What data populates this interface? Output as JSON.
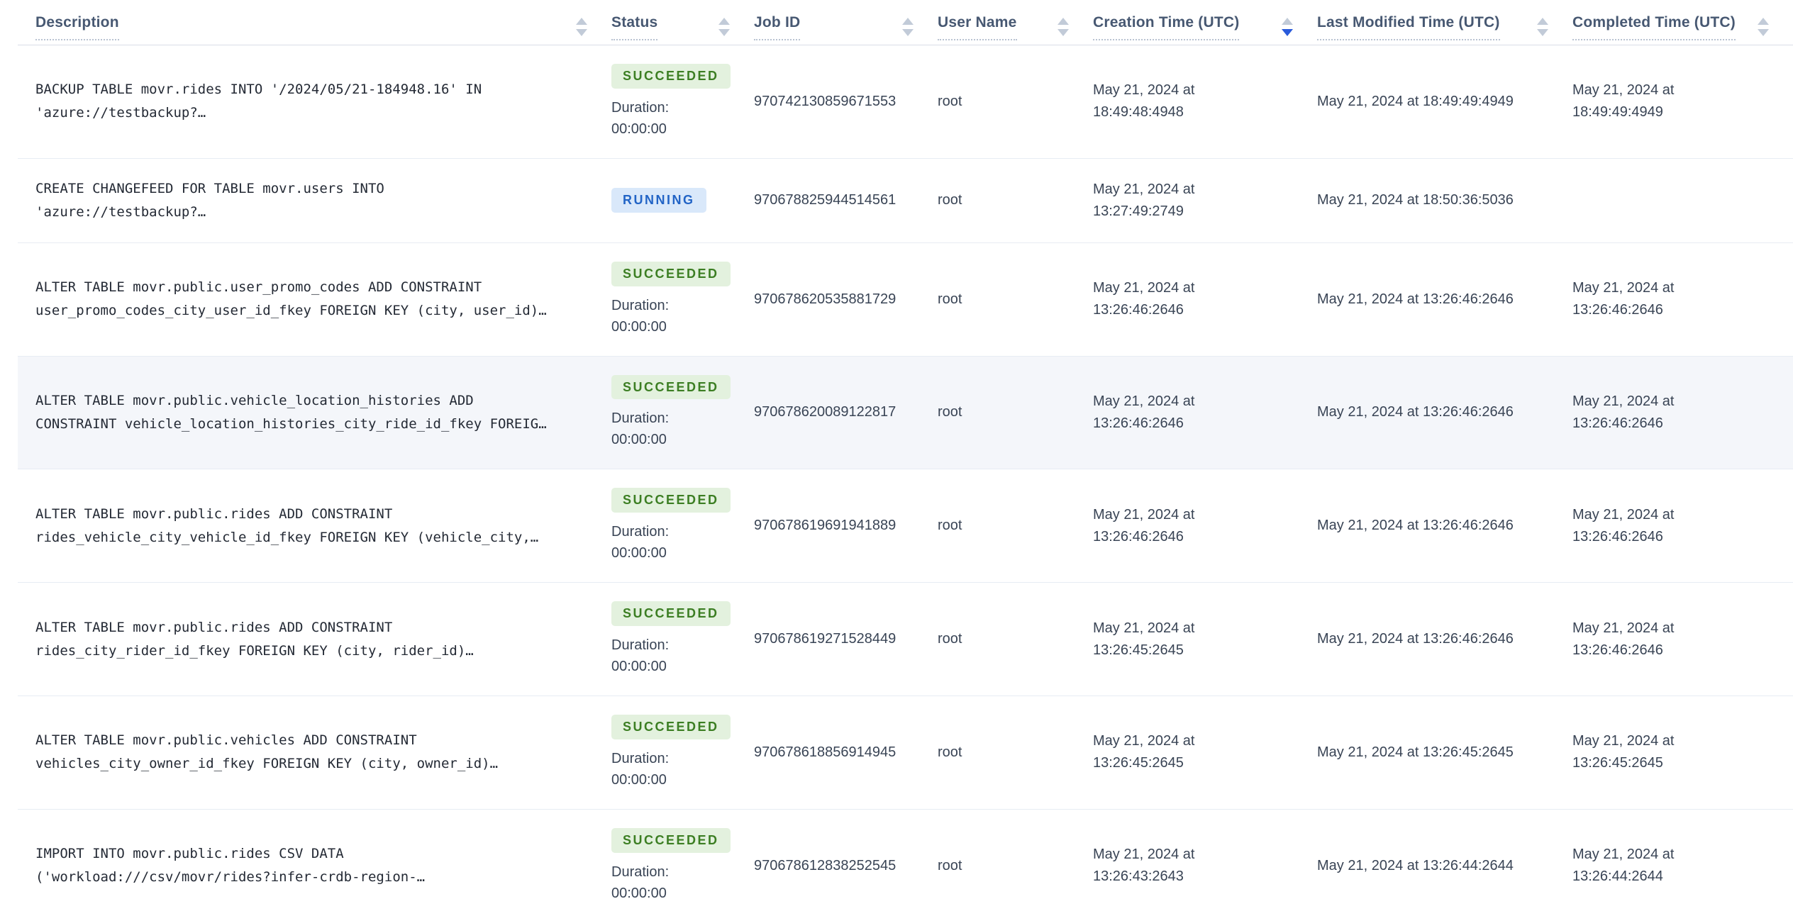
{
  "jobs_table": {
    "columns": [
      {
        "label": "Description",
        "sorted": ""
      },
      {
        "label": "Status",
        "sorted": ""
      },
      {
        "label": "Job ID",
        "sorted": ""
      },
      {
        "label": "User Name",
        "sorted": ""
      },
      {
        "label": "Creation Time (UTC)",
        "sorted": "desc"
      },
      {
        "label": "Last Modified Time (UTC)",
        "sorted": ""
      },
      {
        "label": "Completed Time (UTC)",
        "sorted": ""
      }
    ],
    "colors": {
      "succeeded_badge_bg": "#e3f1de",
      "succeeded_badge_text": "#3c7e23",
      "running_badge_bg": "#d9e8fa",
      "running_badge_text": "#2264c6",
      "active_sort_arrow": "#2a5bdb",
      "row_highlight_bg": "#f4f6fa"
    },
    "rows": [
      {
        "description": "BACKUP TABLE movr.rides INTO '/2024/05/21-184948.16' IN\n'azure://testbackup?…",
        "status_label": "SUCCEEDED",
        "status_type": "succeeded",
        "duration_label": "Duration:",
        "duration": "00:00:00",
        "job_id": "970742130859671553",
        "user_name": "root",
        "creation_time": "May 21, 2024 at\n18:49:48:4948",
        "last_modified_time": "May 21, 2024 at 18:49:49:4949",
        "completed_time": "May 21, 2024 at\n18:49:49:4949"
      },
      {
        "description": "CREATE CHANGEFEED FOR TABLE movr.users INTO\n'azure://testbackup?…",
        "status_label": "RUNNING",
        "status_type": "running",
        "duration_label": "",
        "duration": "",
        "job_id": "970678825944514561",
        "user_name": "root",
        "creation_time": "May 21, 2024 at\n13:27:49:2749",
        "last_modified_time": "May 21, 2024 at 18:50:36:5036",
        "completed_time": ""
      },
      {
        "description": "ALTER TABLE movr.public.user_promo_codes ADD CONSTRAINT\nuser_promo_codes_city_user_id_fkey FOREIGN KEY (city, user_id)…",
        "status_label": "SUCCEEDED",
        "status_type": "succeeded",
        "duration_label": "Duration:",
        "duration": "00:00:00",
        "job_id": "970678620535881729",
        "user_name": "root",
        "creation_time": "May 21, 2024 at\n13:26:46:2646",
        "last_modified_time": "May 21, 2024 at 13:26:46:2646",
        "completed_time": "May 21, 2024 at\n13:26:46:2646"
      },
      {
        "description": "ALTER TABLE movr.public.vehicle_location_histories ADD\nCONSTRAINT vehicle_location_histories_city_ride_id_fkey FOREIG…",
        "status_label": "SUCCEEDED",
        "status_type": "succeeded",
        "duration_label": "Duration:",
        "duration": "00:00:00",
        "job_id": "970678620089122817",
        "user_name": "root",
        "creation_time": "May 21, 2024 at\n13:26:46:2646",
        "last_modified_time": "May 21, 2024 at 13:26:46:2646",
        "completed_time": "May 21, 2024 at\n13:26:46:2646"
      },
      {
        "description": "ALTER TABLE movr.public.rides ADD CONSTRAINT\nrides_vehicle_city_vehicle_id_fkey FOREIGN KEY (vehicle_city,…",
        "status_label": "SUCCEEDED",
        "status_type": "succeeded",
        "duration_label": "Duration:",
        "duration": "00:00:00",
        "job_id": "970678619691941889",
        "user_name": "root",
        "creation_time": "May 21, 2024 at\n13:26:46:2646",
        "last_modified_time": "May 21, 2024 at 13:26:46:2646",
        "completed_time": "May 21, 2024 at\n13:26:46:2646"
      },
      {
        "description": "ALTER TABLE movr.public.rides ADD CONSTRAINT\nrides_city_rider_id_fkey FOREIGN KEY (city, rider_id)…",
        "status_label": "SUCCEEDED",
        "status_type": "succeeded",
        "duration_label": "Duration:",
        "duration": "00:00:00",
        "job_id": "970678619271528449",
        "user_name": "root",
        "creation_time": "May 21, 2024 at\n13:26:45:2645",
        "last_modified_time": "May 21, 2024 at 13:26:46:2646",
        "completed_time": "May 21, 2024 at\n13:26:46:2646"
      },
      {
        "description": "ALTER TABLE movr.public.vehicles ADD CONSTRAINT\nvehicles_city_owner_id_fkey FOREIGN KEY (city, owner_id)…",
        "status_label": "SUCCEEDED",
        "status_type": "succeeded",
        "duration_label": "Duration:",
        "duration": "00:00:00",
        "job_id": "970678618856914945",
        "user_name": "root",
        "creation_time": "May 21, 2024 at\n13:26:45:2645",
        "last_modified_time": "May 21, 2024 at 13:26:45:2645",
        "completed_time": "May 21, 2024 at\n13:26:45:2645"
      },
      {
        "description": "IMPORT INTO movr.public.rides CSV DATA\n('workload:///csv/movr/rides?infer-crdb-region-…",
        "status_label": "SUCCEEDED",
        "status_type": "succeeded",
        "duration_label": "Duration:",
        "duration": "00:00:00",
        "job_id": "970678612838252545",
        "user_name": "root",
        "creation_time": "May 21, 2024 at\n13:26:43:2643",
        "last_modified_time": "May 21, 2024 at 13:26:44:2644",
        "completed_time": "May 21, 2024 at\n13:26:44:2644"
      }
    ]
  }
}
